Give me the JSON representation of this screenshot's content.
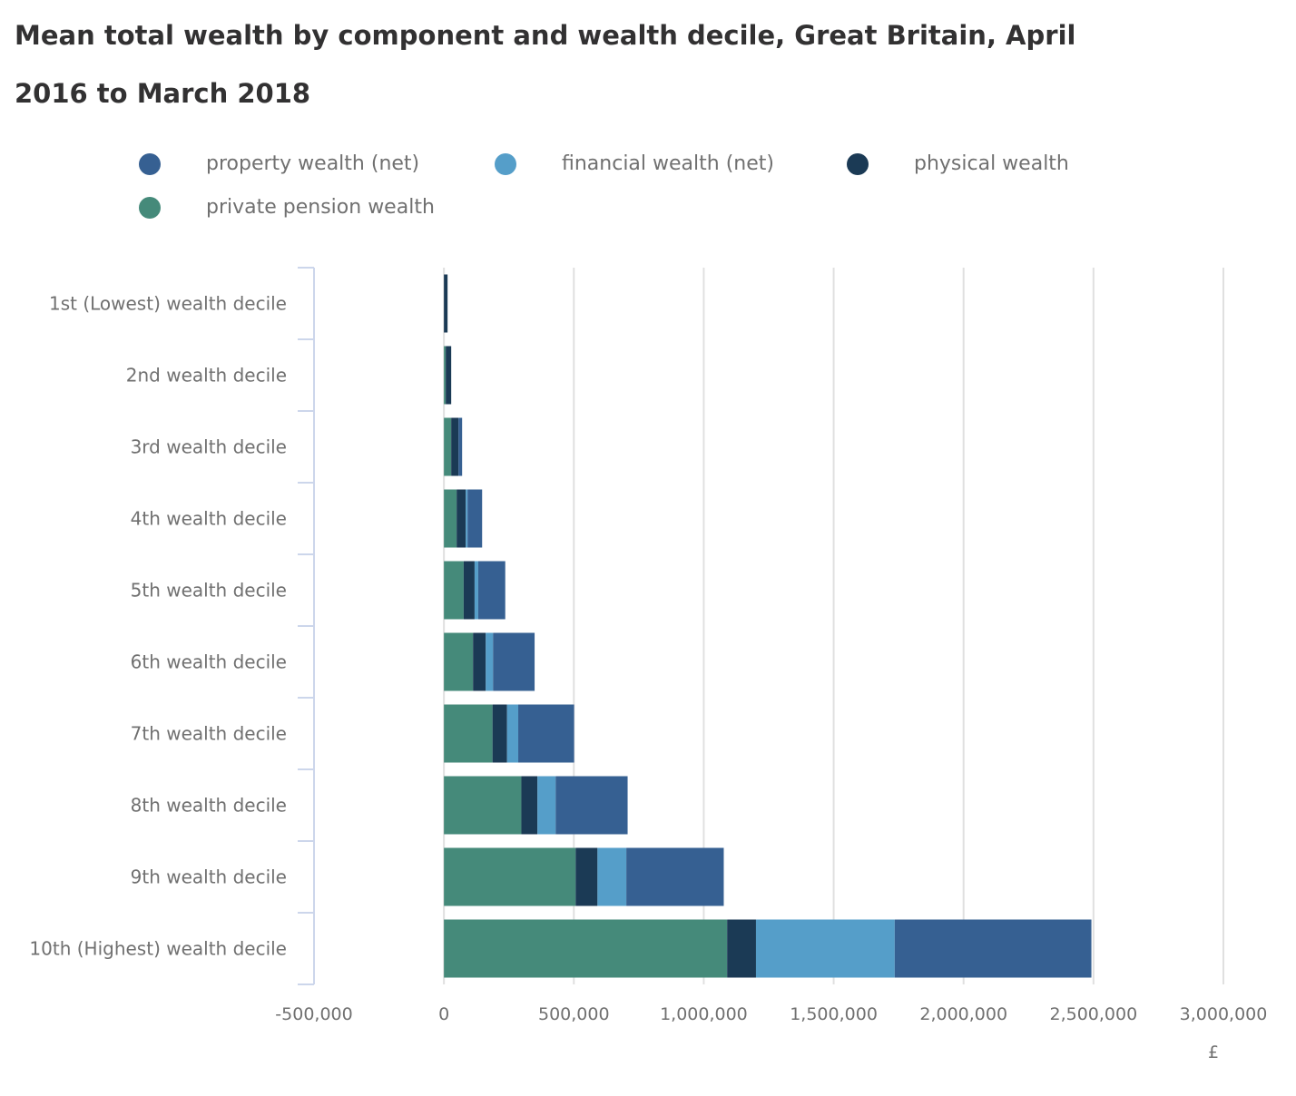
{
  "chart_data": {
    "type": "bar",
    "orientation": "horizontal",
    "stacked": true,
    "title_line1": "Mean total wealth by component and wealth decile, Great Britain, April",
    "title_line2": "2016 to March 2018",
    "xlabel": "£",
    "ylabel": "",
    "xlim": [
      -500000,
      3000000
    ],
    "xticks": [
      -500000,
      0,
      500000,
      1000000,
      1500000,
      2000000,
      2500000,
      3000000
    ],
    "xtick_labels": [
      "-500,000",
      "0",
      "500,000",
      "1,000,000",
      "1,500,000",
      "2,000,000",
      "2,500,000",
      "3,000,000"
    ],
    "grid": true,
    "legend_position": "top",
    "categories": [
      "1st (Lowest) wealth decile",
      "2nd wealth decile",
      "3rd wealth decile",
      "4th wealth decile",
      "5th wealth decile",
      "6th wealth decile",
      "7th wealth decile",
      "8th wealth decile",
      "9th wealth decile",
      "10th (Highest) wealth decile"
    ],
    "series": [
      {
        "name": "private pension wealth",
        "color": "#458a7a",
        "values": [
          0,
          7000,
          28000,
          49000,
          76000,
          112000,
          187000,
          298000,
          507000,
          1090000
        ]
      },
      {
        "name": "physical wealth",
        "color": "#1b3a55",
        "values": [
          14000,
          21000,
          28000,
          35000,
          42000,
          49000,
          56000,
          62000,
          84000,
          111000
        ]
      },
      {
        "name": "financial wealth (net)",
        "color": "#559ec9",
        "values": [
          0,
          0,
          0,
          7000,
          14000,
          28000,
          43000,
          70000,
          111000,
          534000
        ]
      },
      {
        "name": "property wealth (net)",
        "color": "#366092",
        "values": [
          0,
          0,
          14000,
          56000,
          104000,
          160000,
          215000,
          277000,
          375000,
          757000
        ]
      }
    ],
    "legend_order": [
      3,
      2,
      1,
      0
    ]
  }
}
